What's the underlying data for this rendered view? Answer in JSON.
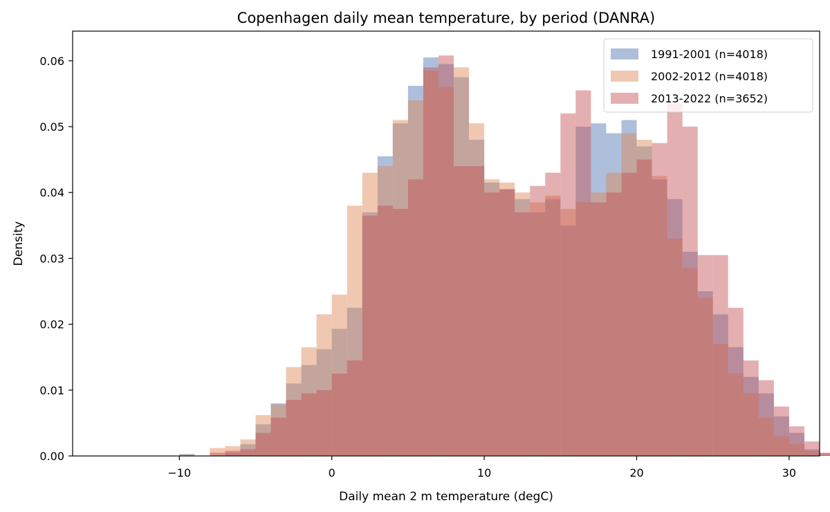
{
  "chart_data": {
    "type": "histogram",
    "title": "Copenhagen daily mean temperature, by period (DANRA)",
    "xlabel": "Daily mean 2 m temperature (degC)",
    "ylabel": "Density",
    "xlim": [
      -17,
      32
    ],
    "ylim": [
      0,
      0.0645
    ],
    "xticks": [
      -10,
      0,
      10,
      20,
      30
    ],
    "xtick_labels": [
      "−10",
      "0",
      "10",
      "20",
      "30"
    ],
    "yticks": [
      0.0,
      0.01,
      0.02,
      0.03,
      0.04,
      0.05,
      0.06
    ],
    "ytick_labels": [
      "0.00",
      "0.01",
      "0.02",
      "0.03",
      "0.04",
      "0.05",
      "0.06"
    ],
    "bin_start": -10,
    "bin_width": 1,
    "grid": false,
    "legend_position": "top-right",
    "series": [
      {
        "name": "1991-2001 (n=4018)",
        "color": "#4c72b0",
        "opacity": 0.45,
        "values": [
          0.0003,
          0.0,
          0.0,
          0.0005,
          0.0018,
          0.0048,
          0.008,
          0.011,
          0.0138,
          0.0162,
          0.0193,
          0.0225,
          0.037,
          0.0455,
          0.0505,
          0.0562,
          0.0605,
          0.0595,
          0.0575,
          0.048,
          0.0415,
          0.0405,
          0.039,
          0.037,
          0.039,
          0.035,
          0.05,
          0.0505,
          0.049,
          0.051,
          0.047,
          0.042,
          0.039,
          0.031,
          0.025,
          0.0215,
          0.0165,
          0.012,
          0.0095,
          0.006,
          0.0035,
          0.001,
          0.0004
        ]
      },
      {
        "name": "2002-2012 (n=4018)",
        "color": "#dd8452",
        "opacity": 0.45,
        "values": [
          0.0002,
          0.0,
          0.0012,
          0.0015,
          0.0025,
          0.0062,
          0.0078,
          0.0135,
          0.0165,
          0.0215,
          0.0245,
          0.038,
          0.043,
          0.044,
          0.051,
          0.054,
          0.0585,
          0.056,
          0.059,
          0.0505,
          0.042,
          0.0415,
          0.04,
          0.0385,
          0.0395,
          0.0375,
          0.0385,
          0.04,
          0.043,
          0.049,
          0.048,
          0.0425,
          0.033,
          0.0285,
          0.024,
          0.017,
          0.0125,
          0.0095,
          0.0058,
          0.003,
          0.0018,
          0.0008,
          0.0002
        ]
      },
      {
        "name": "2013-2022 (n=3652)",
        "color": "#c44e52",
        "opacity": 0.45,
        "values": [
          0.0,
          0.0,
          0.0005,
          0.0008,
          0.001,
          0.0035,
          0.0058,
          0.0085,
          0.0095,
          0.01,
          0.0125,
          0.0145,
          0.0365,
          0.038,
          0.0375,
          0.042,
          0.059,
          0.0608,
          0.044,
          0.044,
          0.04,
          0.0405,
          0.037,
          0.041,
          0.043,
          0.052,
          0.0555,
          0.0385,
          0.04,
          0.043,
          0.045,
          0.0475,
          0.0535,
          0.05,
          0.0305,
          0.0305,
          0.0225,
          0.0145,
          0.0115,
          0.0075,
          0.0045,
          0.0022,
          0.0005
        ]
      }
    ]
  }
}
